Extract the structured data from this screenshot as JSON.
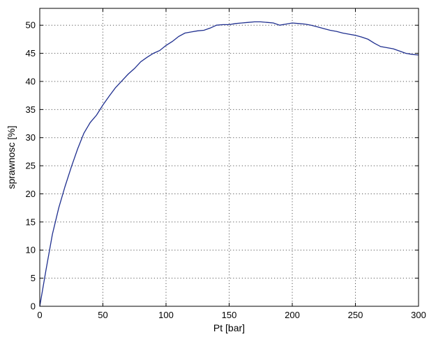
{
  "chart_data": {
    "type": "line",
    "title": "",
    "xlabel": "Pt [bar]",
    "ylabel": "sprawnosc [%]",
    "xlim": [
      0,
      300
    ],
    "ylim": [
      0,
      53
    ],
    "xticks": [
      0,
      50,
      100,
      150,
      200,
      250,
      300
    ],
    "yticks": [
      0,
      5,
      10,
      15,
      20,
      25,
      30,
      35,
      40,
      45,
      50
    ],
    "grid": true,
    "colors": {
      "line": "#1f2f8f",
      "axes": "#000000",
      "grid": "#555555"
    },
    "series": [
      {
        "x": [
          0,
          5,
          10,
          15,
          20,
          25,
          30,
          35,
          40,
          45,
          50,
          55,
          60,
          65,
          70,
          75,
          80,
          85,
          90,
          95,
          100,
          105,
          110,
          115,
          120,
          125,
          130,
          135,
          140,
          145,
          150,
          155,
          160,
          165,
          170,
          175,
          180,
          185,
          190,
          195,
          200,
          205,
          210,
          215,
          220,
          225,
          230,
          235,
          240,
          245,
          250,
          255,
          260,
          265,
          270,
          275,
          280,
          285,
          290,
          295,
          300
        ],
        "y": [
          0,
          6.5,
          12.8,
          17.5,
          21.3,
          24.8,
          28.0,
          30.8,
          32.7,
          34.0,
          35.8,
          37.4,
          38.9,
          40.1,
          41.3,
          42.3,
          43.5,
          44.3,
          45.0,
          45.5,
          46.4,
          47.1,
          48.0,
          48.6,
          48.8,
          49.0,
          49.1,
          49.5,
          50.0,
          50.1,
          50.1,
          50.3,
          50.4,
          50.5,
          50.6,
          50.6,
          50.5,
          50.4,
          50.0,
          50.2,
          50.4,
          50.3,
          50.2,
          50.0,
          49.7,
          49.4,
          49.1,
          48.9,
          48.6,
          48.4,
          48.2,
          47.9,
          47.5,
          46.8,
          46.2,
          46.0,
          45.8,
          45.4,
          45.0,
          44.8,
          44.7
        ]
      }
    ]
  }
}
